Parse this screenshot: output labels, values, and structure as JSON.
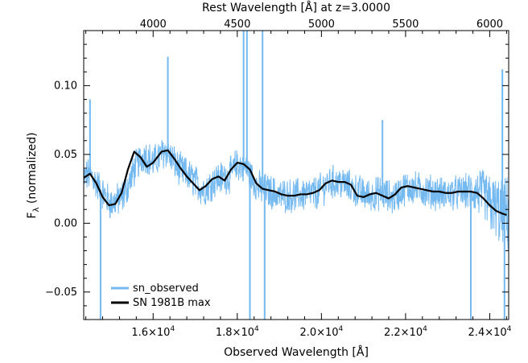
{
  "chart_data": {
    "type": "line",
    "xlabel": "Observed Wavelength [Å]",
    "ylabel": "F",
    "ylabel_subscript": "λ",
    "ylabel_suffix": " (normalized)",
    "top_axis_label": "Rest Wavelength [Å] at z=3.0000",
    "xlim": [
      14350,
      24450
    ],
    "ylim": [
      -0.07,
      0.14
    ],
    "redshift": 3.0,
    "x_ticks": [
      {
        "value": 16000,
        "mantissa": "1.6×10",
        "exp": "4"
      },
      {
        "value": 18000,
        "mantissa": "1.8×10",
        "exp": "4"
      },
      {
        "value": 20000,
        "mantissa": "2.0×10",
        "exp": "4"
      },
      {
        "value": 22000,
        "mantissa": "2.2×10",
        "exp": "4"
      },
      {
        "value": 24000,
        "mantissa": "2.4×10",
        "exp": "4"
      }
    ],
    "top_ticks": [
      {
        "value": 4000,
        "label": "4000"
      },
      {
        "value": 4500,
        "label": "4500"
      },
      {
        "value": 5000,
        "label": "5000"
      },
      {
        "value": 5500,
        "label": "5500"
      },
      {
        "value": 6000,
        "label": "6000"
      }
    ],
    "y_ticks": [
      {
        "value": -0.05,
        "label": "−0.05"
      },
      {
        "value": 0.0,
        "label": "0.00"
      },
      {
        "value": 0.05,
        "label": "0.05"
      },
      {
        "value": 0.1,
        "label": "0.10"
      }
    ],
    "series": [
      {
        "name": "sn_observed",
        "color": "#74b9f0",
        "style": "noisy",
        "noise_amplitude": 0.011,
        "x": [
          14350,
          14500,
          14800,
          15000,
          15300,
          15600,
          15800,
          16000,
          16300,
          16600,
          16900,
          17200,
          17500,
          17800,
          18000,
          18200,
          18500,
          18700,
          19000,
          19300,
          19600,
          19900,
          20200,
          20500,
          20800,
          21100,
          21400,
          21700,
          22000,
          22300,
          22600,
          22900,
          23200,
          23500,
          23800,
          24000,
          24200,
          24400
        ],
        "y": [
          0.033,
          0.036,
          0.022,
          0.014,
          0.02,
          0.042,
          0.05,
          0.044,
          0.053,
          0.04,
          0.033,
          0.024,
          0.032,
          0.034,
          0.043,
          0.04,
          0.026,
          0.024,
          0.02,
          0.02,
          0.021,
          0.022,
          0.03,
          0.029,
          0.024,
          0.02,
          0.022,
          0.018,
          0.026,
          0.025,
          0.023,
          0.021,
          0.022,
          0.023,
          0.022,
          0.014,
          0.009,
          0.006
        ],
        "spikes": [
          {
            "x": 16350,
            "y": 0.121
          },
          {
            "x": 18150,
            "y": 0.14
          },
          {
            "x": 18230,
            "y": 0.14
          },
          {
            "x": 18300,
            "y": -0.07
          },
          {
            "x": 18600,
            "y": 0.14
          },
          {
            "x": 18650,
            "y": -0.07
          },
          {
            "x": 14750,
            "y": -0.07
          },
          {
            "x": 23550,
            "y": -0.07
          },
          {
            "x": 24300,
            "y": 0.112
          },
          {
            "x": 24350,
            "y": -0.07
          },
          {
            "x": 14500,
            "y": 0.09
          },
          {
            "x": 21450,
            "y": 0.075
          }
        ]
      },
      {
        "name": "SN 1981B max",
        "color": "#000000",
        "style": "smooth",
        "x": [
          14350,
          14500,
          14650,
          14800,
          14950,
          15100,
          15250,
          15400,
          15550,
          15700,
          15850,
          16000,
          16200,
          16350,
          16500,
          16650,
          16800,
          16950,
          17100,
          17250,
          17400,
          17550,
          17700,
          17850,
          18000,
          18150,
          18300,
          18450,
          18600,
          18750,
          18900,
          19050,
          19200,
          19350,
          19500,
          19650,
          19800,
          19950,
          20100,
          20250,
          20400,
          20550,
          20700,
          20850,
          21000,
          21150,
          21300,
          21450,
          21600,
          21750,
          21900,
          22050,
          22200,
          22350,
          22500,
          22650,
          22800,
          22950,
          23100,
          23250,
          23400,
          23550,
          23700,
          23850,
          24000,
          24150,
          24300,
          24400
        ],
        "y": [
          0.033,
          0.036,
          0.029,
          0.019,
          0.013,
          0.014,
          0.022,
          0.039,
          0.052,
          0.048,
          0.041,
          0.044,
          0.052,
          0.053,
          0.047,
          0.04,
          0.034,
          0.029,
          0.024,
          0.027,
          0.032,
          0.034,
          0.031,
          0.039,
          0.044,
          0.043,
          0.039,
          0.029,
          0.025,
          0.024,
          0.023,
          0.021,
          0.02,
          0.02,
          0.021,
          0.021,
          0.022,
          0.024,
          0.029,
          0.031,
          0.03,
          0.03,
          0.028,
          0.02,
          0.019,
          0.021,
          0.022,
          0.02,
          0.018,
          0.021,
          0.026,
          0.027,
          0.026,
          0.025,
          0.024,
          0.023,
          0.023,
          0.022,
          0.022,
          0.023,
          0.023,
          0.023,
          0.022,
          0.018,
          0.013,
          0.009,
          0.007,
          0.006
        ]
      }
    ],
    "legend": {
      "position": "bottom-left"
    }
  }
}
